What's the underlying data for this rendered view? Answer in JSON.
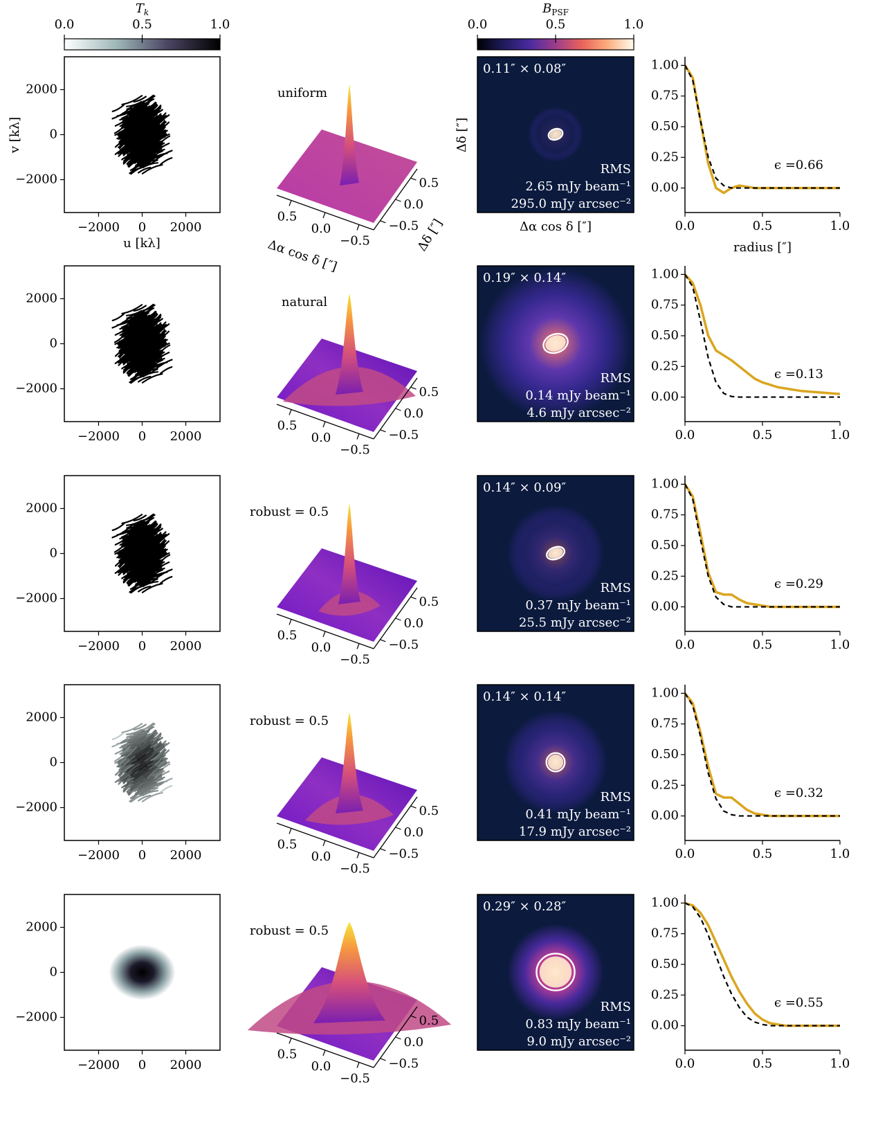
{
  "colorbars": [
    {
      "label": {
        "main": "T",
        "sub": "k"
      },
      "lim": [
        0,
        1
      ],
      "ticks": [
        {
          "value": 0,
          "label": "0.0"
        },
        {
          "value": 0.5,
          "label": "0.5"
        },
        {
          "value": 1,
          "label": "1.0"
        }
      ],
      "colors": [
        "#ffffff",
        "#9fb8b8",
        "#4a4462",
        "#000000"
      ]
    },
    {
      "label": {
        "main": "B",
        "sub": "PSF"
      },
      "lim": [
        0,
        1
      ],
      "ticks": [
        {
          "value": 0,
          "label": "0.0"
        },
        {
          "value": 0.5,
          "label": "0.5"
        },
        {
          "value": 1,
          "label": "1.0"
        }
      ],
      "colors": [
        "#000004",
        "#1f1b5c",
        "#4a2a9e",
        "#9c3d8c",
        "#e8625a",
        "#fcae7e",
        "#fffbef"
      ]
    }
  ],
  "axis_labels": {
    "u": "u [kλ]",
    "v": "v [kλ]",
    "surface_x": "Δα cos δ [″]",
    "surface_y": "Δδ [″]",
    "psf_x": "Δα cos δ [″]",
    "psf_y": "Δδ [″]"
  },
  "rows": [
    {
      "uv": {
        "xlim": [
          -3570,
          3570
        ],
        "ylim": [
          -3460,
          3460
        ],
        "xticks": [
          {
            "value": -2000,
            "label": "−2000"
          },
          0,
          2000
        ],
        "yticks": [
          {
            "value": -2000,
            "label": "−2000"
          },
          0,
          2000
        ]
      },
      "surface": {
        "label": "uniform",
        "xticks": [
          {
            "value": 0.5,
            "label": "0.5"
          },
          {
            "value": 0,
            "label": "0.0"
          },
          {
            "value": -0.5,
            "label": "−0.5"
          }
        ],
        "yticks": [
          {
            "value": -0.5,
            "label": "−0.5"
          },
          {
            "value": 0,
            "label": "0.0"
          },
          {
            "value": 0.5,
            "label": "0.5"
          }
        ]
      },
      "psf": {
        "beam_label": "0.11″ × 0.08″",
        "beam_major": 0.11,
        "beam_minor": 0.08,
        "rms": [
          "RMS",
          "2.65 mJy beam⁻¹",
          "295.0 mJy arcsec⁻²"
        ]
      }
    },
    {
      "uv": {
        "xlim": [
          -3570,
          3570
        ],
        "ylim": [
          -3460,
          3460
        ],
        "xticks": [
          {
            "value": -2000,
            "label": "−2000"
          },
          0,
          2000
        ],
        "yticks": [
          {
            "value": -2000,
            "label": "−2000"
          },
          0,
          2000
        ]
      },
      "surface": {
        "label": "natural",
        "xticks": [
          {
            "value": 0.5,
            "label": "0.5"
          },
          {
            "value": 0,
            "label": "0.0"
          },
          {
            "value": -0.5,
            "label": "−0.5"
          }
        ],
        "yticks": [
          {
            "value": -0.5,
            "label": "−0.5"
          },
          {
            "value": 0,
            "label": "0.0"
          },
          {
            "value": 0.5,
            "label": "0.5"
          }
        ]
      },
      "psf": {
        "beam_label": "0.19″ × 0.14″",
        "beam_major": 0.19,
        "beam_minor": 0.14,
        "rms": [
          "RMS",
          "0.14 mJy beam⁻¹",
          "4.6 mJy arcsec⁻²"
        ]
      }
    },
    {
      "uv": {
        "xlim": [
          -3570,
          3570
        ],
        "ylim": [
          -3460,
          3460
        ],
        "xticks": [
          {
            "value": -2000,
            "label": "−2000"
          },
          0,
          2000
        ],
        "yticks": [
          {
            "value": -2000,
            "label": "−2000"
          },
          0,
          2000
        ]
      },
      "surface": {
        "label": "robust = 0.5",
        "xticks": [
          {
            "value": 0.5,
            "label": "0.5"
          },
          {
            "value": 0,
            "label": "0.0"
          },
          {
            "value": -0.5,
            "label": "−0.5"
          }
        ],
        "yticks": [
          {
            "value": -0.5,
            "label": "−0.5"
          },
          {
            "value": 0,
            "label": "0.0"
          },
          {
            "value": 0.5,
            "label": "0.5"
          }
        ]
      },
      "psf": {
        "beam_label": "0.14″ × 0.09″",
        "beam_major": 0.14,
        "beam_minor": 0.09,
        "rms": [
          "RMS",
          "0.37 mJy beam⁻¹",
          "25.5 mJy arcsec⁻²"
        ]
      }
    },
    {
      "uv": {
        "xlim": [
          -3570,
          3570
        ],
        "ylim": [
          -3460,
          3460
        ],
        "xticks": [
          {
            "value": -2000,
            "label": "−2000"
          },
          0,
          2000
        ],
        "yticks": [
          {
            "value": -2000,
            "label": "−2000"
          },
          0,
          2000
        ]
      },
      "surface": {
        "label": "robust = 0.5",
        "xticks": [
          {
            "value": 0.5,
            "label": "0.5"
          },
          {
            "value": 0,
            "label": "0.0"
          },
          {
            "value": -0.5,
            "label": "−0.5"
          }
        ],
        "yticks": [
          {
            "value": -0.5,
            "label": "−0.5"
          },
          {
            "value": 0,
            "label": "0.0"
          },
          {
            "value": 0.5,
            "label": "0.5"
          }
        ]
      },
      "psf": {
        "beam_label": "0.14″ × 0.14″",
        "beam_major": 0.14,
        "beam_minor": 0.14,
        "rms": [
          "RMS",
          "0.41 mJy beam⁻¹",
          "17.9 mJy arcsec⁻²"
        ]
      }
    },
    {
      "uv": {
        "xlim": [
          -3570,
          3570
        ],
        "ylim": [
          -3460,
          3460
        ],
        "xticks": [
          {
            "value": -2000,
            "label": "−2000"
          },
          0,
          2000
        ],
        "yticks": [
          {
            "value": -2000,
            "label": "−2000"
          },
          0,
          2000
        ]
      },
      "surface": {
        "label": "robust = 0.5",
        "xticks": [
          {
            "value": 0.5,
            "label": "0.5"
          },
          {
            "value": 0,
            "label": "0.0"
          },
          {
            "value": -0.5,
            "label": "−0.5"
          }
        ],
        "yticks": [
          {
            "value": -0.5,
            "label": "−0.5"
          },
          {
            "value": 0,
            "label": "0.0"
          },
          {
            "value": 0.5,
            "label": "0.5"
          }
        ]
      },
      "psf": {
        "beam_label": "0.29″ × 0.28″",
        "beam_major": 0.29,
        "beam_minor": 0.28,
        "rms": [
          "RMS",
          "0.83 mJy beam⁻¹",
          "9.0 mJy arcsec⁻²"
        ]
      }
    }
  ],
  "chart_data": [
    {
      "type": "line",
      "xlabel": "radius [″]",
      "annotation": "ϵ =0.66",
      "xlim": [
        0,
        1
      ],
      "ylim": [
        -0.2,
        1.07
      ],
      "xticks": [
        {
          "value": 0,
          "label": "0.0"
        },
        {
          "value": 0.5,
          "label": "0.5"
        },
        {
          "value": 1,
          "label": "1.0"
        }
      ],
      "yticks": [
        {
          "value": 0,
          "label": "0.00"
        },
        {
          "value": 0.25,
          "label": "0.25"
        },
        {
          "value": 0.5,
          "label": "0.50"
        },
        {
          "value": 0.75,
          "label": "0.75"
        },
        {
          "value": 1,
          "label": "1.00"
        }
      ],
      "x": [
        0,
        0.05,
        0.1,
        0.15,
        0.2,
        0.25,
        0.3,
        0.35,
        0.4,
        0.45,
        0.5,
        0.55,
        0.6,
        0.65,
        0.7,
        0.75,
        0.8,
        0.85,
        0.9,
        0.95,
        1
      ],
      "series": [
        {
          "color": "#daa520",
          "values": [
            1,
            0.9,
            0.55,
            0.2,
            0,
            -0.04,
            0,
            0.02,
            0.01,
            0,
            0,
            0,
            0,
            0,
            0,
            0,
            0,
            0,
            0,
            0,
            0
          ]
        },
        {
          "color": "#000000",
          "dashed": true,
          "values": [
            1,
            0.88,
            0.55,
            0.25,
            0.08,
            0.02,
            0,
            0,
            0,
            0,
            0,
            0,
            0,
            0,
            0,
            0,
            0,
            0,
            0,
            0,
            0
          ]
        }
      ]
    },
    {
      "type": "line",
      "annotation": "ϵ =0.13",
      "xlim": [
        0,
        1
      ],
      "ylim": [
        -0.2,
        1.07
      ],
      "xticks": [
        {
          "value": 0,
          "label": "0.0"
        },
        {
          "value": 0.5,
          "label": "0.5"
        },
        {
          "value": 1,
          "label": "1.0"
        }
      ],
      "yticks": [
        {
          "value": 0,
          "label": "0.00"
        },
        {
          "value": 0.25,
          "label": "0.25"
        },
        {
          "value": 0.5,
          "label": "0.50"
        },
        {
          "value": 0.75,
          "label": "0.75"
        },
        {
          "value": 1,
          "label": "1.00"
        }
      ],
      "x": [
        0,
        0.05,
        0.1,
        0.15,
        0.2,
        0.25,
        0.3,
        0.35,
        0.4,
        0.45,
        0.5,
        0.55,
        0.6,
        0.65,
        0.7,
        0.75,
        0.8,
        0.85,
        0.9,
        0.95,
        1
      ],
      "series": [
        {
          "color": "#daa520",
          "values": [
            1,
            0.93,
            0.75,
            0.5,
            0.38,
            0.34,
            0.3,
            0.25,
            0.2,
            0.15,
            0.12,
            0.1,
            0.08,
            0.07,
            0.06,
            0.05,
            0.045,
            0.04,
            0.035,
            0.03,
            0.025
          ]
        },
        {
          "color": "#000000",
          "dashed": true,
          "values": [
            1,
            0.9,
            0.62,
            0.32,
            0.12,
            0.03,
            0.005,
            0,
            0,
            0,
            0,
            0,
            0,
            0,
            0,
            0,
            0,
            0,
            0,
            0,
            0
          ]
        }
      ]
    },
    {
      "type": "line",
      "annotation": "ϵ =0.29",
      "xlim": [
        0,
        1
      ],
      "ylim": [
        -0.2,
        1.07
      ],
      "xticks": [
        {
          "value": 0,
          "label": "0.0"
        },
        {
          "value": 0.5,
          "label": "0.5"
        },
        {
          "value": 1,
          "label": "1.0"
        }
      ],
      "yticks": [
        {
          "value": 0,
          "label": "0.00"
        },
        {
          "value": 0.25,
          "label": "0.25"
        },
        {
          "value": 0.5,
          "label": "0.50"
        },
        {
          "value": 0.75,
          "label": "0.75"
        },
        {
          "value": 1,
          "label": "1.00"
        }
      ],
      "x": [
        0,
        0.05,
        0.1,
        0.15,
        0.2,
        0.25,
        0.3,
        0.35,
        0.4,
        0.45,
        0.5,
        0.55,
        0.6,
        0.65,
        0.7,
        0.75,
        0.8,
        0.85,
        0.9,
        0.95,
        1
      ],
      "series": [
        {
          "color": "#daa520",
          "values": [
            1,
            0.9,
            0.6,
            0.28,
            0.12,
            0.1,
            0.1,
            0.06,
            0.03,
            0.02,
            0.01,
            0,
            0,
            0,
            0,
            0,
            0,
            0,
            0,
            0,
            0
          ]
        },
        {
          "color": "#000000",
          "dashed": true,
          "values": [
            1,
            0.88,
            0.55,
            0.25,
            0.08,
            0.02,
            0,
            0,
            0,
            0,
            0,
            0,
            0,
            0,
            0,
            0,
            0,
            0,
            0,
            0,
            0
          ]
        }
      ]
    },
    {
      "type": "line",
      "annotation": "ϵ =0.32",
      "xlim": [
        0,
        1
      ],
      "ylim": [
        -0.2,
        1.07
      ],
      "xticks": [
        {
          "value": 0,
          "label": "0.0"
        },
        {
          "value": 0.5,
          "label": "0.5"
        },
        {
          "value": 1,
          "label": "1.0"
        }
      ],
      "yticks": [
        {
          "value": 0,
          "label": "0.00"
        },
        {
          "value": 0.25,
          "label": "0.25"
        },
        {
          "value": 0.5,
          "label": "0.50"
        },
        {
          "value": 0.75,
          "label": "0.75"
        },
        {
          "value": 1,
          "label": "1.00"
        }
      ],
      "x": [
        0,
        0.05,
        0.1,
        0.15,
        0.2,
        0.25,
        0.3,
        0.35,
        0.4,
        0.45,
        0.5,
        0.55,
        0.6,
        0.65,
        0.7,
        0.75,
        0.8,
        0.85,
        0.9,
        0.95,
        1
      ],
      "series": [
        {
          "color": "#daa520",
          "values": [
            1,
            0.92,
            0.68,
            0.4,
            0.18,
            0.15,
            0.15,
            0.1,
            0.05,
            0.02,
            0.01,
            0,
            0,
            0,
            0,
            0,
            0,
            0,
            0,
            0,
            0
          ]
        },
        {
          "color": "#000000",
          "dashed": true,
          "values": [
            1,
            0.9,
            0.65,
            0.35,
            0.14,
            0.04,
            0.01,
            0,
            0,
            0,
            0,
            0,
            0,
            0,
            0,
            0,
            0,
            0,
            0,
            0,
            0
          ]
        }
      ]
    },
    {
      "type": "line",
      "annotation": "ϵ =0.55",
      "xlim": [
        0,
        1
      ],
      "ylim": [
        -0.2,
        1.07
      ],
      "xticks": [
        {
          "value": 0,
          "label": "0.0"
        },
        {
          "value": 0.5,
          "label": "0.5"
        },
        {
          "value": 1,
          "label": "1.0"
        }
      ],
      "yticks": [
        {
          "value": 0,
          "label": "0.00"
        },
        {
          "value": 0.25,
          "label": "0.25"
        },
        {
          "value": 0.5,
          "label": "0.50"
        },
        {
          "value": 0.75,
          "label": "0.75"
        },
        {
          "value": 1,
          "label": "1.00"
        }
      ],
      "x": [
        0,
        0.05,
        0.1,
        0.15,
        0.2,
        0.25,
        0.3,
        0.35,
        0.4,
        0.45,
        0.5,
        0.55,
        0.6,
        0.65,
        0.7,
        0.75,
        0.8,
        0.85,
        0.9,
        0.95,
        1
      ],
      "series": [
        {
          "color": "#daa520",
          "values": [
            1,
            0.98,
            0.92,
            0.82,
            0.68,
            0.54,
            0.4,
            0.28,
            0.18,
            0.1,
            0.05,
            0.02,
            0.01,
            0,
            0,
            0,
            0,
            0,
            0,
            0,
            0
          ]
        },
        {
          "color": "#000000",
          "dashed": true,
          "values": [
            1,
            0.97,
            0.88,
            0.74,
            0.57,
            0.4,
            0.26,
            0.15,
            0.07,
            0.03,
            0.01,
            0,
            0,
            0,
            0,
            0,
            0,
            0,
            0,
            0,
            0
          ]
        }
      ]
    }
  ]
}
